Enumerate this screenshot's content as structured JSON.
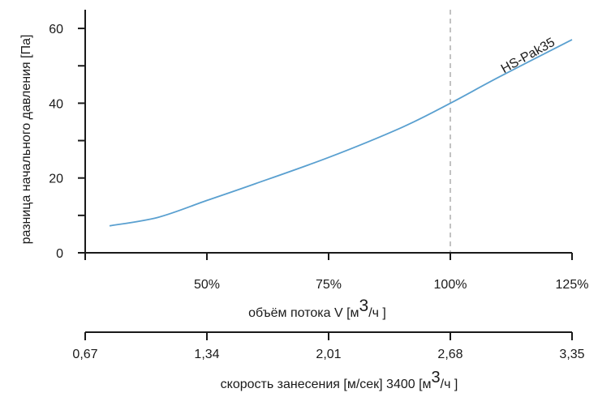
{
  "chart_data": {
    "type": "line",
    "series": [
      {
        "name": "HS-Pak35",
        "color": "#5aa0d0",
        "points": [
          [
            30,
            7.2
          ],
          [
            40,
            9.5
          ],
          [
            50,
            14.0
          ],
          [
            60,
            18.5
          ],
          [
            75,
            25.5
          ],
          [
            90,
            33.5
          ],
          [
            100,
            40.0
          ],
          [
            110,
            47.0
          ],
          [
            125,
            57.0
          ]
        ]
      }
    ],
    "axes": {
      "y": {
        "label": "разница начального давления   [Па]",
        "range": [
          0,
          65
        ],
        "ticks": [
          0,
          20,
          40,
          60
        ],
        "tick_labels": [
          "0",
          "20",
          "40",
          "60"
        ],
        "minor_ticks": [
          10,
          30,
          50
        ]
      },
      "x_primary": {
        "label_main": "объём потока V [м",
        "label_sup": "3",
        "label_end": "/ч ]",
        "range": [
          25,
          125
        ],
        "ticks": [
          50,
          75,
          100,
          125
        ],
        "tick_labels": [
          "50%",
          "75%",
          "100%",
          "125%"
        ]
      },
      "x_secondary": {
        "label_main": "скорость занесения  [м/сек] 3400 [м",
        "label_sup": "3",
        "label_end": "/ч ]",
        "ticks": [
          0.67,
          1.34,
          2.01,
          2.68,
          3.35
        ],
        "tick_labels": [
          "0,67",
          "1,34",
          "2,01",
          "2,68",
          "3,35"
        ]
      }
    },
    "reference_line": {
      "x": 100,
      "style": "dashed",
      "color": "#9a9a9a"
    },
    "colors": {
      "axis": "#1a1a1a",
      "curve": "#5aa0d0"
    }
  }
}
